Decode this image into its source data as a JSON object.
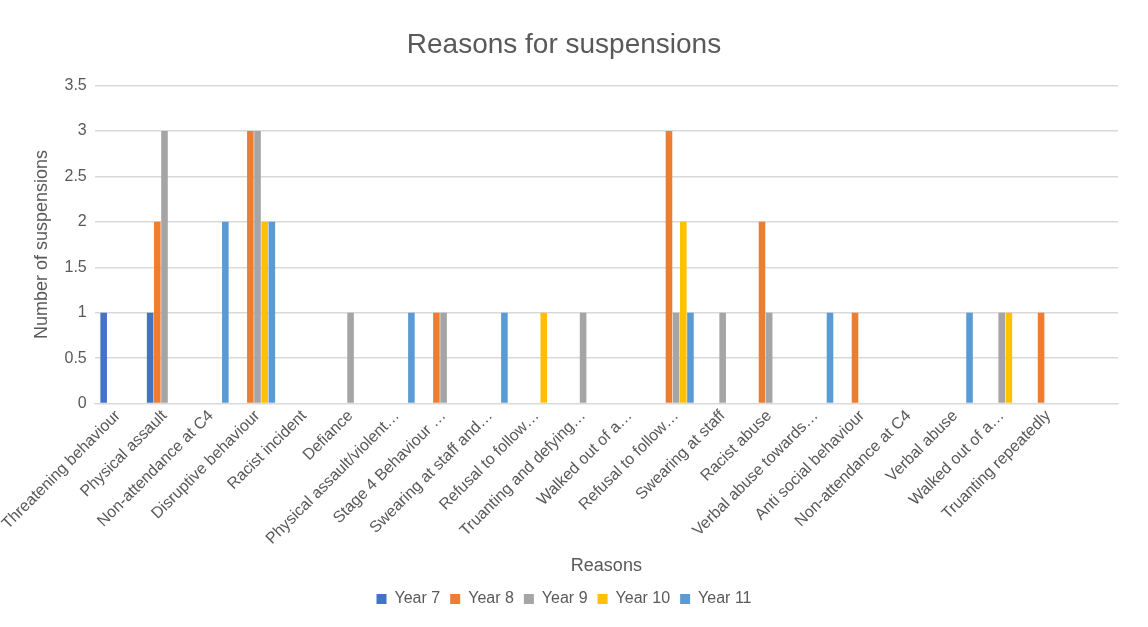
{
  "chart_data": {
    "type": "bar",
    "title": "Reasons for suspensions",
    "xlabel": "Reasons",
    "ylabel": "Number of suspensions",
    "categories": [
      "Threatening behaviour",
      "Physical assault",
      "Non-attendance at C4",
      "Disruptive behaviour",
      "Racist incident",
      "Defiance",
      "Physical assault/violent…",
      "Stage 4 Behaviour …",
      "Swearing at staff and…",
      "Refusal to follow…",
      "Truanting and defying…",
      "Walked out of a…",
      "Refusal to follow…",
      "Swearing at staff",
      "Racist abuse",
      "Verbal abuse towards…",
      "Anti social behaviour",
      "Non-attendance at C4",
      "Verbal abuse",
      "Walked out of a…",
      "Truanting repeatedly",
      null
    ],
    "series": [
      {
        "name": "Year 7",
        "color": "#4472c4",
        "values": [
          1,
          1,
          null,
          null,
          null,
          null,
          null,
          null,
          null,
          null,
          null,
          null,
          null,
          null,
          null,
          null,
          null,
          null,
          null,
          null,
          null,
          null
        ]
      },
      {
        "name": "Year 8",
        "color": "#ed7d31",
        "values": [
          null,
          2,
          null,
          3,
          null,
          null,
          null,
          1,
          null,
          null,
          null,
          null,
          3,
          null,
          2,
          null,
          1,
          null,
          null,
          null,
          1,
          null
        ]
      },
      {
        "name": "Year 9",
        "color": "#a5a5a5",
        "values": [
          null,
          3,
          null,
          3,
          null,
          1,
          null,
          1,
          null,
          null,
          1,
          null,
          1,
          1,
          1,
          null,
          null,
          null,
          null,
          1,
          null,
          null
        ]
      },
      {
        "name": "Year 10",
        "color": "#ffc000",
        "values": [
          null,
          null,
          null,
          2,
          null,
          null,
          null,
          null,
          null,
          1,
          null,
          null,
          2,
          null,
          null,
          null,
          null,
          null,
          null,
          1,
          null,
          null
        ]
      },
      {
        "name": "Year 11",
        "color": "#5b9bd5",
        "values": [
          null,
          null,
          2,
          2,
          null,
          null,
          1,
          null,
          1,
          null,
          null,
          null,
          1,
          null,
          null,
          1,
          null,
          null,
          1,
          null,
          null,
          null
        ]
      }
    ],
    "ylim": [
      0,
      3.5
    ],
    "yticks": [
      0,
      0.5,
      1,
      1.5,
      2,
      2.5,
      3,
      3.5
    ],
    "grid": "y",
    "legend": "bottom"
  }
}
